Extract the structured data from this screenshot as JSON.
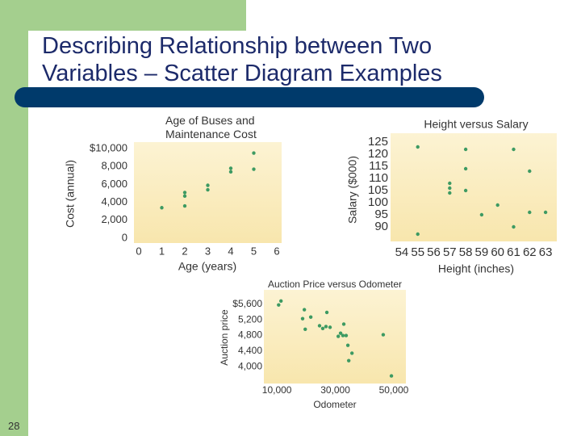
{
  "slide": {
    "title": "Describing Relationship between Two Variables – Scatter Diagram Examples",
    "page_number": "28"
  },
  "chart_data": [
    {
      "type": "scatter",
      "title": "Age of Buses and Maintenance Cost",
      "x_label": "Age (years)",
      "y_label": "Cost (annual)",
      "x": [
        1,
        2,
        2,
        2,
        3,
        3,
        4,
        4,
        5,
        5
      ],
      "values": [
        3400,
        3600,
        4700,
        5100,
        5400,
        5900,
        7400,
        7800,
        7700,
        9500
      ],
      "color": "#3d9a62",
      "xlim": [
        0,
        6
      ],
      "xticks": [
        0,
        1,
        2,
        3,
        4,
        5,
        6
      ],
      "ylim": [
        0,
        10000
      ],
      "yticks": [
        0,
        {
          "value": 2000,
          "label": "2,000"
        },
        {
          "value": 4000,
          "label": "4,000"
        },
        {
          "value": 6000,
          "label": "6,000"
        },
        {
          "value": 8000,
          "label": "8,000"
        },
        {
          "value": 10000,
          "label": "$10,000"
        }
      ]
    },
    {
      "type": "scatter",
      "title": "Height versus Salary",
      "x_label": "Height (inches)",
      "y_label": "Salary ($000)",
      "x": [
        55,
        55,
        57,
        57,
        57,
        58,
        58,
        58,
        59,
        60,
        61,
        61,
        62,
        62,
        63
      ],
      "values": [
        123,
        87,
        108,
        106,
        104,
        122,
        114,
        105,
        95,
        99,
        90,
        122,
        113,
        96,
        96
      ],
      "color": "#3d9a62",
      "xlim": [
        53.6,
        63.4
      ],
      "xticks": [
        54,
        55,
        56,
        57,
        58,
        59,
        60,
        61,
        62,
        63
      ],
      "ylim": [
        86,
        126
      ],
      "yticks": [
        90,
        95,
        100,
        105,
        110,
        115,
        120,
        125
      ]
    },
    {
      "type": "scatter",
      "title": "Auction Price versus Odometer",
      "x_label": "Odometer",
      "y_label": "Auction price",
      "x": [
        10600,
        11400,
        19400,
        21600,
        18800,
        27100,
        19700,
        25700,
        26800,
        28200,
        24600,
        31000,
        31800,
        32600,
        33700,
        32900,
        34300,
        35700,
        34600,
        46400,
        49200
      ],
      "values": [
        5580,
        5680,
        5460,
        5270,
        5230,
        5390,
        4960,
        4980,
        5030,
        5010,
        5050,
        4780,
        4860,
        4800,
        4800,
        5090,
        4550,
        4350,
        4160,
        4820,
        3770
      ],
      "color": "#3d9a62",
      "xlim": [
        7200,
        52500
      ],
      "xticks": [
        {
          "value": 10000,
          "label": "10,000"
        },
        {
          "value": 30000,
          "label": "30,000"
        },
        {
          "value": 50000,
          "label": "50,000"
        }
      ],
      "ylim": [
        3700,
        5800
      ],
      "yticks": [
        {
          "value": 4000,
          "label": "4,000"
        },
        {
          "value": 4400,
          "label": "4,400"
        },
        {
          "value": 4800,
          "label": "4,800"
        },
        {
          "value": 5200,
          "label": "5,200"
        },
        {
          "value": 5600,
          "label": "$5,600"
        }
      ]
    }
  ]
}
